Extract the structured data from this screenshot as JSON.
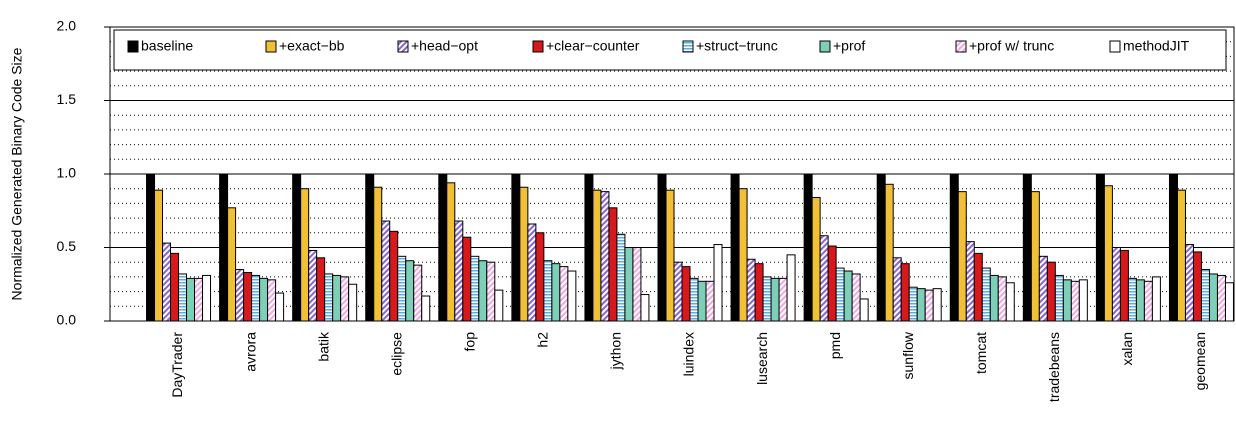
{
  "chart_data": {
    "type": "bar",
    "y_label": "Normalized Generated Binary Code Size",
    "categories": [
      "DayTrader",
      "avrora",
      "batik",
      "eclipse",
      "fop",
      "h2",
      "jython",
      "luindex",
      "lusearch",
      "pmd",
      "sunflow",
      "tomcat",
      "tradebeans",
      "xalan",
      "geomean"
    ],
    "series": [
      {
        "name": "baseline",
        "color": "#000000",
        "values": [
          1.0,
          1.0,
          1.0,
          1.0,
          1.0,
          1.0,
          1.0,
          1.0,
          1.0,
          1.0,
          1.0,
          1.0,
          1.0,
          1.0,
          1.0
        ]
      },
      {
        "name": "+exact−bb",
        "color": "#f2c037",
        "values": [
          0.89,
          0.77,
          0.9,
          0.91,
          0.94,
          0.91,
          0.89,
          0.89,
          0.9,
          0.84,
          0.93,
          0.88,
          0.88,
          0.92,
          0.89
        ]
      },
      {
        "name": "+head−opt",
        "color": "#8a63d2",
        "values": [
          0.53,
          0.35,
          0.48,
          0.68,
          0.68,
          0.66,
          0.88,
          0.4,
          0.42,
          0.58,
          0.43,
          0.54,
          0.44,
          0.5,
          0.52
        ]
      },
      {
        "name": "+clear−counter",
        "color": "#d7191c",
        "values": [
          0.46,
          0.33,
          0.43,
          0.61,
          0.57,
          0.6,
          0.77,
          0.37,
          0.39,
          0.51,
          0.39,
          0.46,
          0.4,
          0.48,
          0.47
        ]
      },
      {
        "name": "+struct−trunc",
        "color": "#5aaee6",
        "values": [
          0.32,
          0.31,
          0.32,
          0.44,
          0.44,
          0.41,
          0.59,
          0.29,
          0.3,
          0.36,
          0.23,
          0.36,
          0.31,
          0.29,
          0.35
        ]
      },
      {
        "name": "+prof",
        "color": "#7ecfb8",
        "values": [
          0.29,
          0.29,
          0.31,
          0.41,
          0.41,
          0.39,
          0.5,
          0.27,
          0.29,
          0.34,
          0.22,
          0.31,
          0.28,
          0.28,
          0.32
        ]
      },
      {
        "name": "+prof w/ trunc",
        "color": "#f2a6e2",
        "values": [
          0.29,
          0.28,
          0.3,
          0.38,
          0.4,
          0.37,
          0.5,
          0.27,
          0.29,
          0.32,
          0.21,
          0.3,
          0.27,
          0.27,
          0.31
        ]
      },
      {
        "name": "methodJIT",
        "color": "#ffffff",
        "values": [
          0.31,
          0.19,
          0.25,
          0.17,
          0.21,
          0.34,
          0.18,
          0.52,
          0.45,
          0.15,
          0.22,
          0.26,
          0.28,
          0.3,
          0.26
        ]
      }
    ],
    "ylim": [
      0,
      2
    ],
    "yticks": [
      {
        "value": 0,
        "label": "0.0"
      },
      {
        "value": 0.5,
        "label": "0.5"
      },
      {
        "value": 1,
        "label": "1.0"
      },
      {
        "value": 1.5,
        "label": "1.5"
      },
      {
        "value": 2,
        "label": "2.0"
      }
    ],
    "grid": true
  }
}
